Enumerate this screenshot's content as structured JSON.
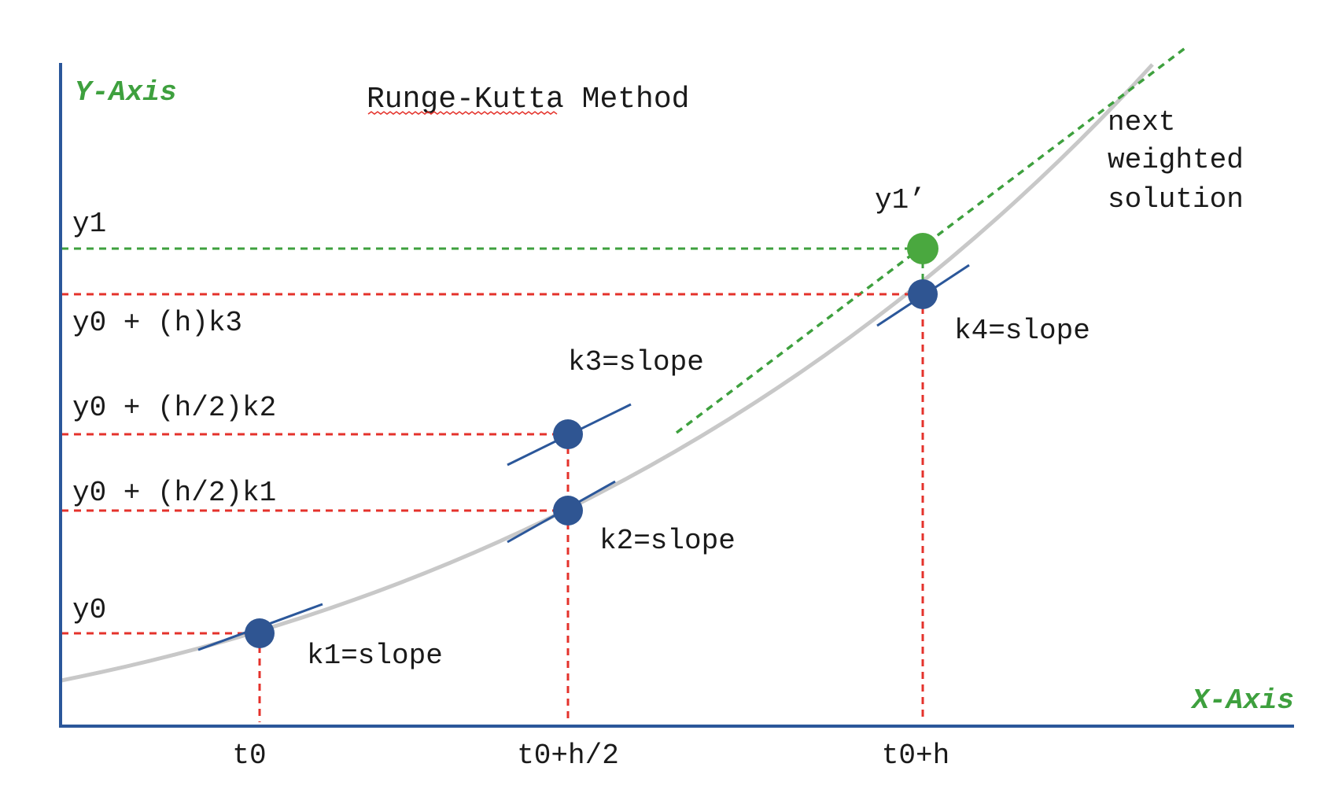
{
  "title": "Runge-Kutta Method",
  "axes": {
    "y_name": "Y-Axis",
    "x_name": "X-Axis"
  },
  "y_labels": {
    "y1": "y1",
    "y0_h_k3": "y0 + (h)k3",
    "y0_h2_k2": "y0 + (h/2)k2",
    "y0_h2_k1": "y0 + (h/2)k1",
    "y0": "y0"
  },
  "x_labels": {
    "t0": "t0",
    "t0_half": "t0+h/2",
    "t0_h": "t0+h"
  },
  "slopes": {
    "k1": "k1=slope",
    "k2": "k2=slope",
    "k3": "k3=slope",
    "k4": "k4=slope"
  },
  "result_point": "y1’",
  "next_solution": [
    "next",
    "weighted",
    "solution"
  ],
  "colors": {
    "axis": "#2b579a",
    "axis_name": "#3ea03e",
    "point": "#2f5592",
    "result_point": "#4aa83f",
    "guide_red": "#e4322b",
    "guide_green": "#3ea03e",
    "curve": "#c8c8c8",
    "text": "#1a1a1a",
    "spellcheck": "#e4322b"
  }
}
